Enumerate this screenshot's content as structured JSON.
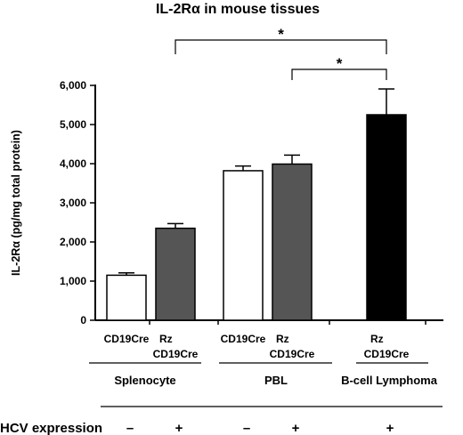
{
  "chart_data": {
    "type": "bar",
    "title": "IL-2Rα in mouse tissues",
    "ylabel": "IL-2Rα (pg/mg total protein)",
    "ylim": [
      0,
      6000
    ],
    "yticks": [
      "0",
      "1,000",
      "2,000",
      "3,000",
      "4,000",
      "5,000",
      "6,000"
    ],
    "grid": false,
    "bars": [
      {
        "label": "CD19Cre",
        "group": "Splenocyte",
        "value": 1150,
        "error": 60,
        "fill": "#ffffff",
        "hcv": "–"
      },
      {
        "label": "Rz CD19Cre",
        "group": "Splenocyte",
        "value": 2350,
        "error": 120,
        "fill": "#555555",
        "hcv": "+"
      },
      {
        "label": "CD19Cre",
        "group": "PBL",
        "value": 3820,
        "error": 120,
        "fill": "#ffffff",
        "hcv": "–"
      },
      {
        "label": "Rz CD19Cre",
        "group": "PBL",
        "value": 3990,
        "error": 230,
        "fill": "#555555",
        "hcv": "+"
      },
      {
        "label": "Rz CD19Cre",
        "group": "B-cell Lymphoma",
        "value": 5250,
        "error": 660,
        "fill": "#000000",
        "hcv": "+"
      }
    ],
    "groups": [
      "Splenocyte",
      "PBL",
      "B-cell Lymphoma"
    ],
    "significance": [
      {
        "from": 1,
        "to": 4,
        "label": "*"
      },
      {
        "from": 3,
        "to": 4,
        "label": "*"
      }
    ],
    "row_label": "HCV expression"
  }
}
